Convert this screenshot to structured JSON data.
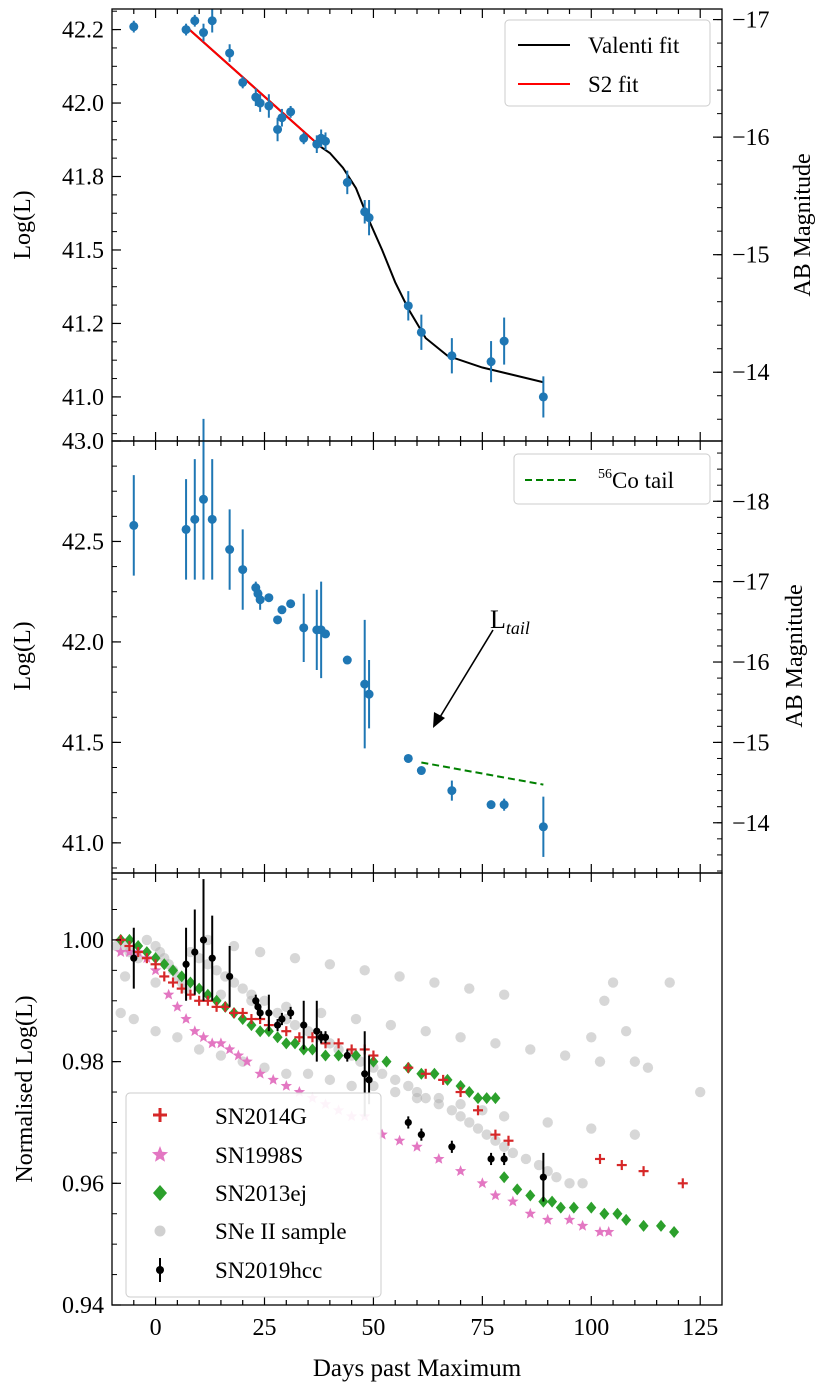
{
  "chart_data": [
    {
      "panel": "top",
      "type": "scatter",
      "xlabel": "",
      "ylabel": "Log(L)",
      "ylabel_right": "AB Magnitude",
      "xlim": [
        -10,
        130
      ],
      "ylim": [
        40.85,
        42.32
      ],
      "y_ticks": [
        "41.0",
        "41.2",
        "41.5",
        "41.8",
        "42.0",
        "42.2"
      ],
      "y_tick_values": [
        41.0,
        41.25,
        41.5,
        41.75,
        42.0,
        42.25
      ],
      "y_right_ticks": [
        "−14",
        "−15",
        "−16",
        "−17"
      ],
      "y_right_tick_values": [
        41.084,
        41.484,
        41.884,
        42.284
      ],
      "points": {
        "x": [
          -5,
          7,
          9,
          11,
          13,
          17,
          20,
          23,
          24,
          26,
          28,
          29,
          31,
          34,
          37,
          38,
          39,
          44,
          48,
          49,
          58,
          61,
          68,
          77,
          80,
          89
        ],
        "y": [
          42.26,
          42.25,
          42.28,
          42.24,
          42.28,
          42.17,
          42.07,
          42.02,
          42.0,
          41.99,
          41.91,
          41.95,
          41.97,
          41.88,
          41.86,
          41.88,
          41.87,
          41.73,
          41.63,
          41.61,
          41.31,
          41.22,
          41.14,
          41.12,
          41.19,
          41.0
        ],
        "err": [
          0.02,
          0.02,
          0.02,
          0.03,
          0.04,
          0.03,
          0.02,
          0.03,
          0.03,
          0.04,
          0.04,
          0.03,
          0.02,
          0.02,
          0.03,
          0.03,
          0.03,
          0.04,
          0.04,
          0.06,
          0.05,
          0.06,
          0.06,
          0.07,
          0.08,
          0.07
        ]
      },
      "series": [
        {
          "name": "Valenti fit",
          "color": "#000000",
          "x": [
            7,
            38,
            40,
            43,
            46,
            49,
            52,
            55,
            58,
            62,
            67,
            75,
            89
          ],
          "y": [
            42.26,
            41.85,
            41.83,
            41.78,
            41.71,
            41.6,
            41.5,
            41.39,
            41.3,
            41.2,
            41.14,
            41.1,
            41.05
          ]
        },
        {
          "name": "S2 fit",
          "color": "#ff0000",
          "x": [
            7,
            38
          ],
          "y": [
            42.26,
            41.85
          ]
        }
      ],
      "legend": "top-right"
    },
    {
      "panel": "middle",
      "type": "scatter",
      "xlabel": "",
      "ylabel": "Log(L)",
      "ylabel_right": "AB Magnitude",
      "xlim": [
        -10,
        130
      ],
      "ylim": [
        40.85,
        43.0
      ],
      "y_ticks": [
        "41.0",
        "41.5",
        "42.0",
        "42.5",
        "43.0"
      ],
      "y_tick_values": [
        41.0,
        41.5,
        42.0,
        42.5,
        43.0
      ],
      "y_right_ticks": [
        "−14",
        "−15",
        "−16",
        "−17",
        "−18"
      ],
      "y_right_tick_values": [
        41.1,
        41.5,
        41.9,
        42.3,
        42.7
      ],
      "points": {
        "x": [
          -5,
          7,
          9,
          11,
          13,
          17,
          20,
          23,
          23.5,
          24,
          26,
          28,
          29,
          31,
          34,
          37,
          38,
          39,
          44,
          48,
          49,
          58,
          61,
          68,
          77,
          80,
          89
        ],
        "y": [
          42.58,
          42.56,
          42.61,
          42.71,
          42.61,
          42.46,
          42.36,
          42.27,
          42.24,
          42.21,
          42.22,
          42.11,
          42.16,
          42.19,
          42.07,
          42.06,
          42.06,
          42.04,
          41.91,
          41.79,
          41.74,
          41.42,
          41.36,
          41.26,
          41.19,
          41.19,
          41.08
        ],
        "err": [
          0.25,
          0.25,
          0.3,
          0.4,
          0.3,
          0.2,
          0.2,
          0.03,
          0.03,
          0.05,
          0.02,
          0.02,
          0.02,
          0.02,
          0.17,
          0.2,
          0.24,
          0.02,
          0.02,
          0.32,
          0.17,
          0.02,
          0.02,
          0.05,
          0.02,
          0.03,
          0.15
        ]
      },
      "series": [
        {
          "name": "⁵⁶Co tail",
          "color": "#008000",
          "dashed": true,
          "x": [
            61,
            89
          ],
          "y": [
            41.4,
            41.29
          ]
        }
      ],
      "annotation": {
        "text_main": "L",
        "text_sub": "tail",
        "x": 78,
        "y": 42.05,
        "arrow_to_x": 63,
        "arrow_to_y": 41.55
      },
      "legend": "top-right"
    },
    {
      "panel": "bottom",
      "type": "scatter",
      "xlabel": "Days past Maximum",
      "ylabel": "Normalised Log(L)",
      "xlim": [
        -10,
        130
      ],
      "ylim": [
        0.94,
        1.011
      ],
      "x_ticks": [
        "0",
        "25",
        "50",
        "75",
        "100",
        "125"
      ],
      "x_tick_values": [
        0,
        25,
        50,
        75,
        100,
        125
      ],
      "y_ticks": [
        "0.94",
        "0.96",
        "0.98",
        "1.00"
      ],
      "y_tick_values": [
        0.94,
        0.96,
        0.98,
        1.0
      ],
      "series": [
        {
          "name": "SN2014G",
          "marker": "plus",
          "color": "#d62728",
          "x": [
            -8,
            -6,
            -4,
            -2,
            0,
            2,
            4,
            6,
            8,
            10,
            12,
            14,
            16,
            18,
            20,
            22,
            24,
            26,
            30,
            33,
            36,
            39,
            42,
            45,
            48,
            50,
            58,
            62,
            66,
            70,
            74,
            78,
            81,
            102,
            107,
            112,
            121
          ],
          "y": [
            1.0,
            0.999,
            0.998,
            0.997,
            0.996,
            0.994,
            0.993,
            0.992,
            0.991,
            0.99,
            0.99,
            0.989,
            0.989,
            0.988,
            0.988,
            0.987,
            0.987,
            0.986,
            0.985,
            0.984,
            0.984,
            0.983,
            0.983,
            0.982,
            0.982,
            0.981,
            0.979,
            0.978,
            0.977,
            0.975,
            0.972,
            0.968,
            0.967,
            0.964,
            0.963,
            0.962,
            0.96
          ]
        },
        {
          "name": "SN1998S",
          "marker": "star",
          "color": "#e377c2",
          "x": [
            -8,
            -6,
            -4,
            -2,
            0,
            3,
            5,
            7,
            9,
            11,
            13,
            15,
            17,
            19,
            21,
            24,
            27,
            30,
            33,
            36,
            39,
            42,
            45,
            48,
            52,
            56,
            60,
            65,
            70,
            75,
            78,
            82,
            86,
            90,
            95,
            98,
            102,
            104
          ],
          "y": [
            0.998,
            0.998,
            0.998,
            0.997,
            0.995,
            0.991,
            0.989,
            0.987,
            0.985,
            0.984,
            0.983,
            0.983,
            0.982,
            0.981,
            0.98,
            0.978,
            0.977,
            0.976,
            0.975,
            0.974,
            0.973,
            0.972,
            0.971,
            0.971,
            0.968,
            0.967,
            0.966,
            0.964,
            0.962,
            0.96,
            0.958,
            0.957,
            0.955,
            0.954,
            0.954,
            0.953,
            0.952,
            0.952
          ]
        },
        {
          "name": "SN2013ej",
          "marker": "diamond",
          "color": "#2ca02c",
          "x": [
            -8,
            -6,
            -4,
            -2,
            0,
            2,
            4,
            6,
            8,
            10,
            12,
            14,
            16,
            18,
            20,
            22,
            24,
            26,
            28,
            30,
            32,
            34,
            36,
            39,
            42,
            46,
            50,
            53,
            58,
            61,
            64,
            67,
            70,
            72,
            74,
            76,
            78,
            80,
            83,
            86,
            89,
            91,
            93,
            96,
            100,
            103,
            106,
            108,
            112,
            116,
            119
          ],
          "y": [
            1.0,
            1.0,
            0.999,
            0.998,
            0.997,
            0.996,
            0.995,
            0.994,
            0.993,
            0.992,
            0.991,
            0.99,
            0.989,
            0.988,
            0.987,
            0.986,
            0.985,
            0.985,
            0.984,
            0.983,
            0.983,
            0.982,
            0.982,
            0.981,
            0.981,
            0.981,
            0.98,
            0.98,
            0.979,
            0.978,
            0.978,
            0.977,
            0.976,
            0.975,
            0.974,
            0.974,
            0.974,
            0.961,
            0.959,
            0.958,
            0.957,
            0.957,
            0.956,
            0.956,
            0.956,
            0.955,
            0.955,
            0.954,
            0.953,
            0.953,
            0.952
          ]
        },
        {
          "name": "SNe II sample",
          "marker": "circle",
          "color": "#b0b0b0",
          "x": [
            -9,
            -7,
            -6,
            -4,
            -2,
            0,
            1,
            2,
            3,
            4,
            5,
            6,
            8,
            10,
            12,
            14,
            16,
            18,
            20,
            22,
            25,
            28,
            30,
            32,
            35,
            38,
            40,
            42,
            45,
            47,
            50,
            52,
            55,
            58,
            60,
            62,
            65,
            68,
            70,
            72,
            74,
            76,
            78,
            80,
            82,
            85,
            88,
            90,
            92,
            95,
            98,
            100,
            103,
            105,
            108,
            110,
            113,
            118,
            125,
            -8,
            -5,
            0,
            5,
            10,
            15,
            20,
            25,
            30,
            35,
            40,
            45,
            50,
            55,
            60,
            65,
            70,
            75,
            80,
            90,
            100,
            110,
            -7,
            0,
            7,
            15,
            22,
            30,
            38,
            46,
            54,
            62,
            70,
            78,
            86,
            94,
            102,
            12,
            18,
            24,
            32,
            40,
            48,
            56,
            64,
            72,
            80
          ],
          "y": [
            0.999,
            0.999,
            0.998,
            0.997,
            1.0,
            0.999,
            0.998,
            0.997,
            0.996,
            0.995,
            0.994,
            0.993,
            0.998,
            0.997,
            0.996,
            0.995,
            0.994,
            0.993,
            0.992,
            0.991,
            0.99,
            0.988,
            0.987,
            0.986,
            0.985,
            0.984,
            0.983,
            0.982,
            0.981,
            0.98,
            0.979,
            0.978,
            0.977,
            0.976,
            0.975,
            0.974,
            0.973,
            0.972,
            0.971,
            0.97,
            0.969,
            0.968,
            0.967,
            0.966,
            0.965,
            0.964,
            0.963,
            0.962,
            0.961,
            0.96,
            0.96,
            0.984,
            0.99,
            0.993,
            0.985,
            0.98,
            0.979,
            0.993,
            0.975,
            0.988,
            0.987,
            0.985,
            0.984,
            0.982,
            0.981,
            0.98,
            0.979,
            0.978,
            0.978,
            0.977,
            0.976,
            0.976,
            0.975,
            0.974,
            0.974,
            0.973,
            0.972,
            0.971,
            0.97,
            0.969,
            0.968,
            0.994,
            0.993,
            0.992,
            0.991,
            0.99,
            0.989,
            0.988,
            0.987,
            0.986,
            0.985,
            0.984,
            0.983,
            0.982,
            0.981,
            0.98,
            1.0,
            0.999,
            0.998,
            0.997,
            0.996,
            0.995,
            0.994,
            0.993,
            0.992,
            0.991
          ]
        },
        {
          "name": "SN2019hcc",
          "marker": "errorbar",
          "color": "#000000",
          "x": [
            -5,
            7,
            9,
            11,
            13,
            17,
            23,
            23.5,
            24,
            26,
            28,
            29,
            31,
            34,
            37,
            38,
            39,
            44,
            48,
            49,
            58,
            61,
            68,
            77,
            80,
            89
          ],
          "y": [
            0.997,
            0.996,
            0.998,
            1.0,
            0.997,
            0.994,
            0.99,
            0.989,
            0.988,
            0.988,
            0.986,
            0.987,
            0.988,
            0.986,
            0.985,
            0.984,
            0.984,
            0.981,
            0.978,
            0.977,
            0.97,
            0.968,
            0.966,
            0.964,
            0.964,
            0.961
          ],
          "err": [
            0.005,
            0.006,
            0.007,
            0.01,
            0.007,
            0.005,
            0.001,
            0.001,
            0.001,
            0.003,
            0.001,
            0.001,
            0.001,
            0.004,
            0.005,
            0.001,
            0.001,
            0.001,
            0.007,
            0.004,
            0.001,
            0.001,
            0.001,
            0.001,
            0.001,
            0.004
          ]
        }
      ],
      "legend": "bottom-left"
    }
  ],
  "legend_labels": {
    "valenti": "Valenti fit",
    "s2": "S2 fit",
    "co_tail_sup": "56",
    "co_tail_text": "Co tail",
    "sn2014g": "SN2014G",
    "sn1998s": "SN1998S",
    "sn2013ej": "SN2013ej",
    "sample": "SNe II sample",
    "sn2019hcc": "SN2019hcc"
  },
  "annotation_text": {
    "main": "L",
    "sub": "tail"
  },
  "axis_labels": {
    "top_y": "Log(L)",
    "top_y_right": "AB Magnitude",
    "mid_y": "Log(L)",
    "mid_y_right": "AB Magnitude",
    "bottom_y": "Normalised Log(L)",
    "x": "Days past Maximum"
  }
}
